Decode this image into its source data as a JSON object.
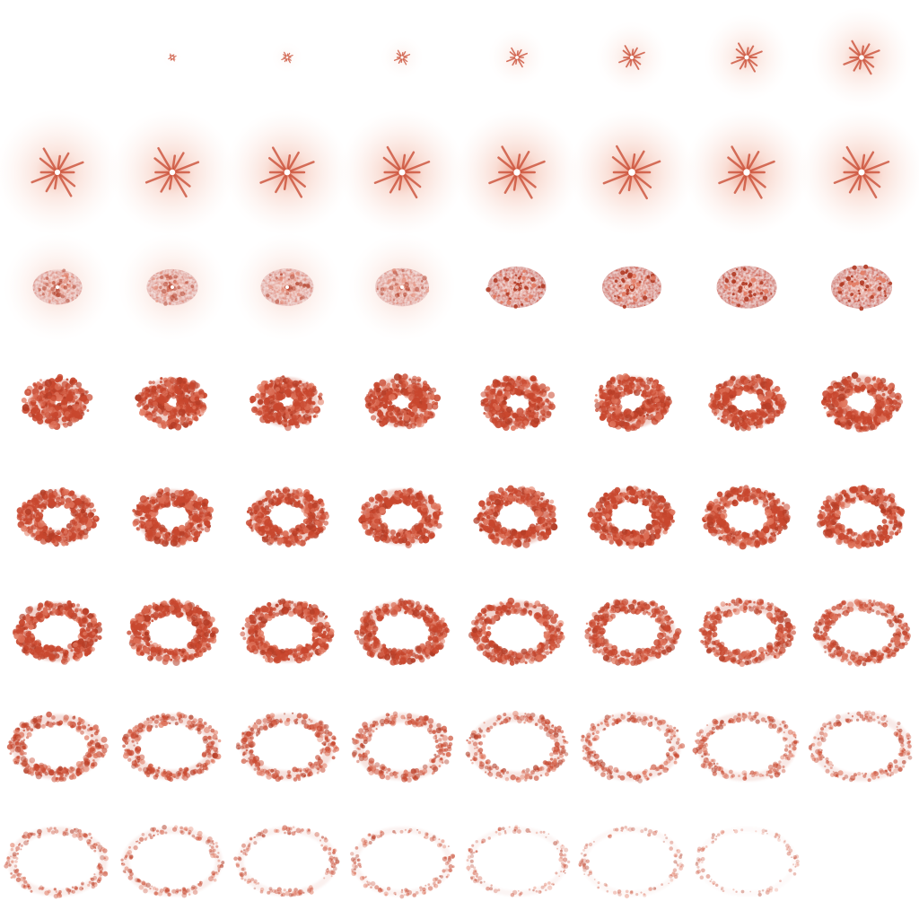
{
  "sheet": {
    "grid": {
      "columns": 8,
      "rows": 8
    },
    "frame_count": 63,
    "colors": {
      "ring": "#c8472e",
      "ring_dark": "#b03a24",
      "glow": "#f3b6a3",
      "spark_core": "#ffffff",
      "background": "#ffffff"
    },
    "frames": [
      {
        "stage": "empty",
        "intensity": 0.0
      },
      {
        "stage": "spark",
        "intensity": 0.05
      },
      {
        "stage": "spark",
        "intensity": 0.12
      },
      {
        "stage": "spark",
        "intensity": 0.2
      },
      {
        "stage": "spark",
        "intensity": 0.3
      },
      {
        "stage": "spark",
        "intensity": 0.4
      },
      {
        "stage": "spark",
        "intensity": 0.5
      },
      {
        "stage": "spark",
        "intensity": 0.6
      },
      {
        "stage": "flare",
        "intensity": 0.7
      },
      {
        "stage": "flare",
        "intensity": 0.75
      },
      {
        "stage": "flare",
        "intensity": 0.8
      },
      {
        "stage": "flare",
        "intensity": 0.85
      },
      {
        "stage": "flare",
        "intensity": 0.9
      },
      {
        "stage": "flare",
        "intensity": 0.95
      },
      {
        "stage": "flare",
        "intensity": 0.9
      },
      {
        "stage": "flare",
        "intensity": 0.85
      },
      {
        "stage": "blob",
        "intensity": 0.35
      },
      {
        "stage": "blob",
        "intensity": 0.45
      },
      {
        "stage": "blob",
        "intensity": 0.55
      },
      {
        "stage": "blob",
        "intensity": 0.6
      },
      {
        "stage": "blob",
        "intensity": 0.85
      },
      {
        "stage": "blob",
        "intensity": 0.9
      },
      {
        "stage": "blob",
        "intensity": 0.95
      },
      {
        "stage": "blob",
        "intensity": 1.0
      },
      {
        "stage": "ring",
        "intensity": 1.0,
        "hole": 0.15
      },
      {
        "stage": "ring",
        "intensity": 1.0,
        "hole": 0.2
      },
      {
        "stage": "ring",
        "intensity": 1.0,
        "hole": 0.25
      },
      {
        "stage": "ring",
        "intensity": 1.0,
        "hole": 0.3
      },
      {
        "stage": "ring",
        "intensity": 1.0,
        "hole": 0.34
      },
      {
        "stage": "ring",
        "intensity": 1.0,
        "hole": 0.37
      },
      {
        "stage": "ring",
        "intensity": 1.0,
        "hole": 0.4
      },
      {
        "stage": "ring",
        "intensity": 1.0,
        "hole": 0.42
      },
      {
        "stage": "ring",
        "intensity": 1.0,
        "hole": 0.44
      },
      {
        "stage": "ring",
        "intensity": 1.0,
        "hole": 0.46
      },
      {
        "stage": "ring",
        "intensity": 1.0,
        "hole": 0.48
      },
      {
        "stage": "ring",
        "intensity": 1.0,
        "hole": 0.5
      },
      {
        "stage": "ring",
        "intensity": 1.0,
        "hole": 0.5
      },
      {
        "stage": "ring",
        "intensity": 1.0,
        "hole": 0.52
      },
      {
        "stage": "ring",
        "intensity": 1.0,
        "hole": 0.53
      },
      {
        "stage": "ring",
        "intensity": 1.0,
        "hole": 0.54
      },
      {
        "stage": "ring",
        "intensity": 1.0,
        "hole": 0.56
      },
      {
        "stage": "ring",
        "intensity": 1.0,
        "hole": 0.57
      },
      {
        "stage": "ring",
        "intensity": 1.0,
        "hole": 0.58
      },
      {
        "stage": "ring",
        "intensity": 0.95,
        "hole": 0.6
      },
      {
        "stage": "ring",
        "intensity": 0.9,
        "hole": 0.61
      },
      {
        "stage": "ring",
        "intensity": 0.85,
        "hole": 0.62
      },
      {
        "stage": "ring",
        "intensity": 0.8,
        "hole": 0.64
      },
      {
        "stage": "ring",
        "intensity": 0.75,
        "hole": 0.65
      },
      {
        "stage": "ring",
        "intensity": 0.7,
        "hole": 0.66
      },
      {
        "stage": "ring",
        "intensity": 0.66,
        "hole": 0.68
      },
      {
        "stage": "ring",
        "intensity": 0.62,
        "hole": 0.69
      },
      {
        "stage": "ring",
        "intensity": 0.58,
        "hole": 0.7
      },
      {
        "stage": "ring",
        "intensity": 0.54,
        "hole": 0.71
      },
      {
        "stage": "ring",
        "intensity": 0.5,
        "hole": 0.72
      },
      {
        "stage": "ring",
        "intensity": 0.46,
        "hole": 0.74
      },
      {
        "stage": "ring",
        "intensity": 0.42,
        "hole": 0.75
      },
      {
        "stage": "ring",
        "intensity": 0.38,
        "hole": 0.78
      },
      {
        "stage": "ring",
        "intensity": 0.34,
        "hole": 0.79
      },
      {
        "stage": "ring",
        "intensity": 0.3,
        "hole": 0.8
      },
      {
        "stage": "ring",
        "intensity": 0.26,
        "hole": 0.81
      },
      {
        "stage": "ring",
        "intensity": 0.2,
        "hole": 0.82
      },
      {
        "stage": "ring",
        "intensity": 0.15,
        "hole": 0.83
      },
      {
        "stage": "ring",
        "intensity": 0.1,
        "hole": 0.84
      }
    ]
  }
}
